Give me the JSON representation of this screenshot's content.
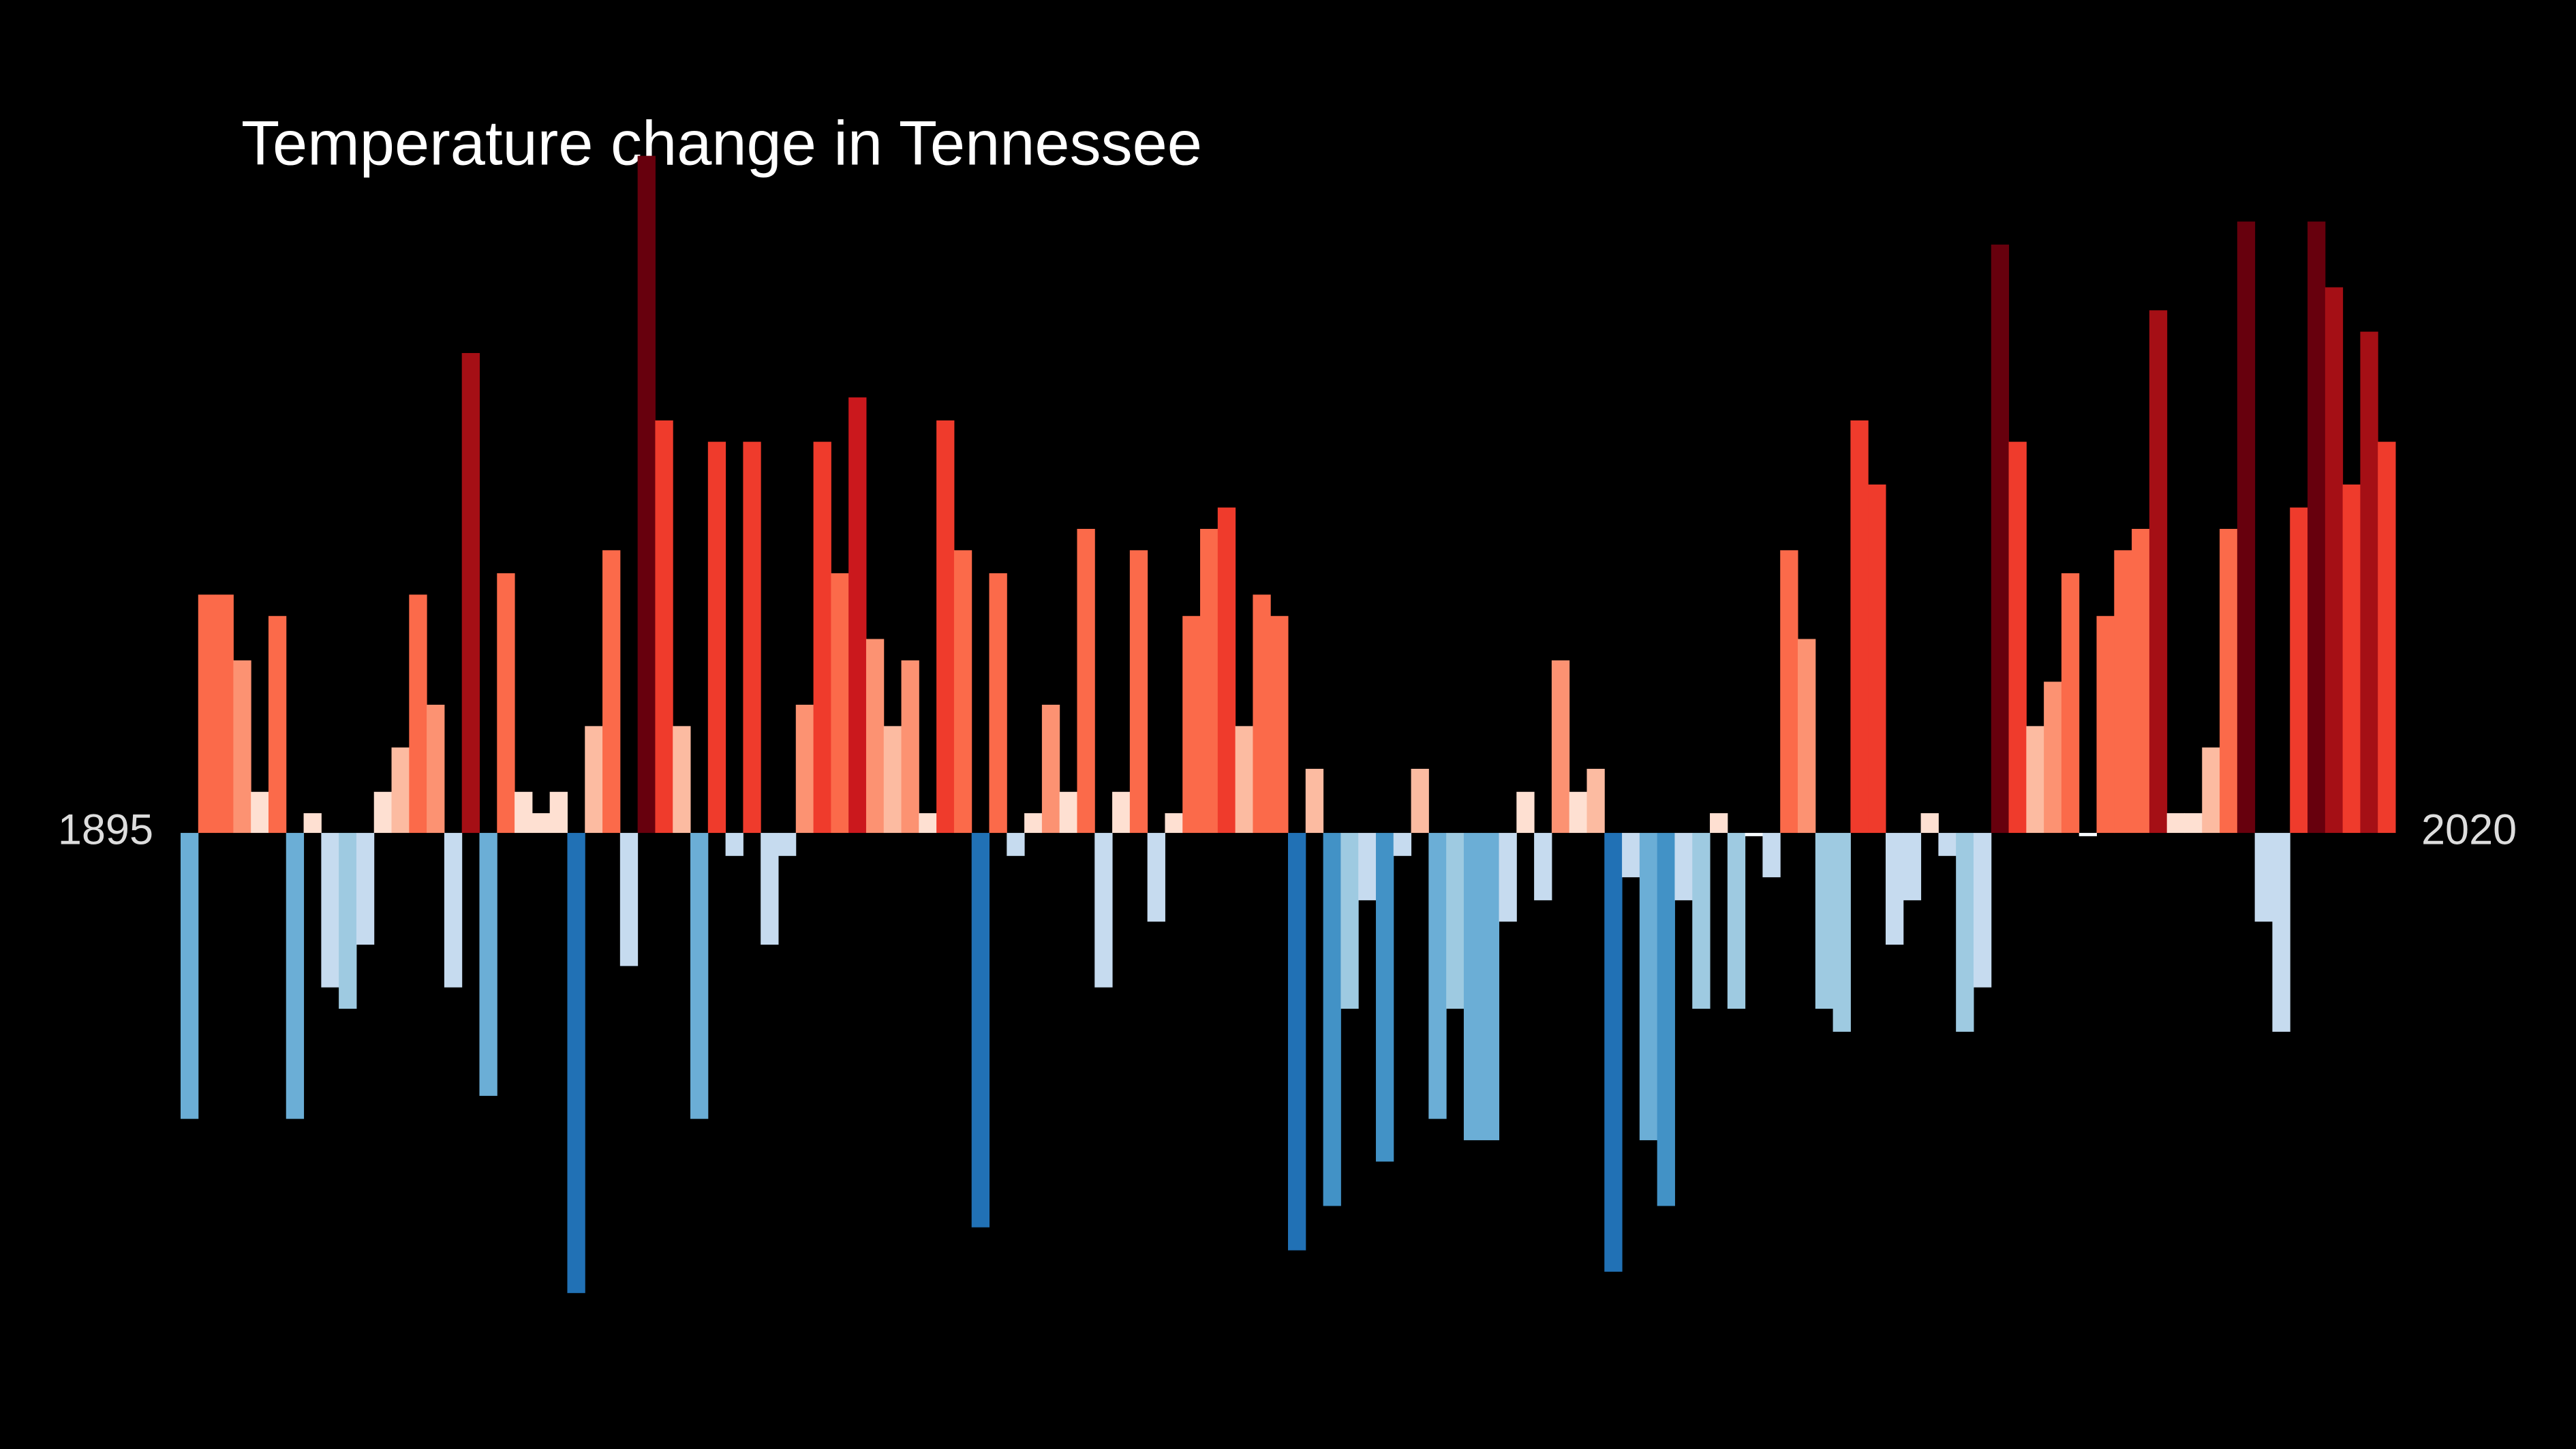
{
  "chart_data": {
    "type": "bar",
    "title": "Temperature change in Tennessee",
    "categories": [
      "1895",
      null,
      null,
      null,
      null,
      null,
      null,
      null,
      null,
      null,
      null,
      null,
      null,
      null,
      null,
      null,
      null,
      null,
      null,
      null,
      null,
      null,
      null,
      null,
      null,
      null,
      null,
      null,
      null,
      null,
      null,
      null,
      null,
      null,
      null,
      null,
      null,
      null,
      null,
      null,
      null,
      null,
      null,
      null,
      null,
      null,
      null,
      null,
      null,
      null,
      null,
      null,
      null,
      null,
      null,
      null,
      null,
      null,
      null,
      null,
      null,
      null,
      null,
      null,
      null,
      null,
      null,
      null,
      null,
      null,
      null,
      null,
      null,
      null,
      null,
      null,
      null,
      null,
      null,
      null,
      null,
      null,
      null,
      null,
      null,
      null,
      null,
      null,
      null,
      null,
      null,
      null,
      null,
      null,
      null,
      null,
      null,
      null,
      null,
      null,
      null,
      null,
      null,
      null,
      null,
      null,
      null,
      null,
      null,
      null,
      null,
      null,
      null,
      null,
      null,
      null,
      null,
      null,
      null,
      null,
      null,
      null,
      null,
      null,
      null,
      "2020"
    ],
    "values": [
      -1.74,
      1.45,
      1.45,
      1.05,
      0.25,
      1.32,
      -1.74,
      0.12,
      -0.94,
      -1.07,
      -0.68,
      0.25,
      0.52,
      1.45,
      0.78,
      -0.94,
      2.92,
      -1.6,
      1.58,
      0.25,
      0.12,
      0.25,
      -2.8,
      0.65,
      1.72,
      -0.81,
      4.12,
      2.51,
      0.65,
      -1.74,
      2.38,
      -0.14,
      2.38,
      -0.68,
      -0.14,
      0.78,
      2.38,
      1.58,
      2.65,
      1.18,
      0.65,
      1.05,
      0.12,
      2.51,
      1.72,
      -2.4,
      1.58,
      -0.14,
      0.12,
      0.78,
      0.25,
      1.85,
      -0.94,
      0.25,
      1.72,
      -0.54,
      0.12,
      1.32,
      1.85,
      1.98,
      0.65,
      1.45,
      1.32,
      -2.54,
      0.39,
      -2.27,
      -1.07,
      -0.41,
      -2.0,
      -0.14,
      0.39,
      -1.74,
      -1.07,
      -1.87,
      -1.87,
      -0.54,
      0.25,
      -0.41,
      1.05,
      0.25,
      0.39,
      -2.67,
      -0.27,
      -1.87,
      -2.27,
      -0.41,
      -1.07,
      0.12,
      -1.07,
      -0.02,
      -0.27,
      1.72,
      1.18,
      -1.07,
      -1.21,
      2.51,
      2.12,
      -0.68,
      -0.41,
      0.12,
      -0.14,
      -1.21,
      -0.94,
      3.58,
      2.38,
      0.65,
      0.92,
      1.58,
      -0.02,
      1.32,
      1.72,
      1.85,
      3.18,
      0.12,
      0.12,
      0.52,
      1.85,
      3.72,
      -0.54,
      -1.21,
      1.98,
      3.72,
      3.32,
      2.12,
      3.05,
      2.38
    ],
    "colors": [
      "#6baed6",
      "#fb6a4a",
      "#fb6a4a",
      "#fc9272",
      "#fee0d2",
      "#fb6a4a",
      "#6baed6",
      "#fee0d2",
      "#c6dbef",
      "#9ecae1",
      "#c6dbef",
      "#fee0d2",
      "#fcbba1",
      "#fb6a4a",
      "#fc9272",
      "#c6dbef",
      "#a50f15",
      "#6baed6",
      "#fb6a4a",
      "#fee0d2",
      "#fee0d2",
      "#fee0d2",
      "#2171b5",
      "#fcbba1",
      "#fb6a4a",
      "#c6dbef",
      "#67000d",
      "#ef3b2c",
      "#fcbba1",
      "#6baed6",
      "#ef3b2c",
      "#c6dbef",
      "#ef3b2c",
      "#c6dbef",
      "#c6dbef",
      "#fc9272",
      "#ef3b2c",
      "#fb6a4a",
      "#cb181d",
      "#fc9272",
      "#fcbba1",
      "#fc9272",
      "#fee0d2",
      "#ef3b2c",
      "#fb6a4a",
      "#2171b5",
      "#fb6a4a",
      "#c6dbef",
      "#fee0d2",
      "#fc9272",
      "#fee0d2",
      "#fb6a4a",
      "#c6dbef",
      "#fee0d2",
      "#fb6a4a",
      "#c6dbef",
      "#fee0d2",
      "#fb6a4a",
      "#fb6a4a",
      "#ef3b2c",
      "#fcbba1",
      "#fb6a4a",
      "#fb6a4a",
      "#2171b5",
      "#fcbba1",
      "#4292c6",
      "#9ecae1",
      "#c6dbef",
      "#4292c6",
      "#c6dbef",
      "#fcbba1",
      "#6baed6",
      "#9ecae1",
      "#6baed6",
      "#6baed6",
      "#c6dbef",
      "#fee0d2",
      "#c6dbef",
      "#fc9272",
      "#fee0d2",
      "#fcbba1",
      "#2171b5",
      "#c6dbef",
      "#6baed6",
      "#4292c6",
      "#c6dbef",
      "#9ecae1",
      "#fee0d2",
      "#9ecae1",
      "#f7fbff",
      "#c6dbef",
      "#fb6a4a",
      "#fc9272",
      "#9ecae1",
      "#9ecae1",
      "#ef3b2c",
      "#ef3b2c",
      "#c6dbef",
      "#c6dbef",
      "#fee0d2",
      "#c6dbef",
      "#9ecae1",
      "#c6dbef",
      "#67000d",
      "#ef3b2c",
      "#fcbba1",
      "#fc9272",
      "#fb6a4a",
      "#f7fbff",
      "#fb6a4a",
      "#fb6a4a",
      "#fb6a4a",
      "#a50f15",
      "#fee0d2",
      "#fee0d2",
      "#fcbba1",
      "#fb6a4a",
      "#67000d",
      "#c6dbef",
      "#c6dbef",
      "#ef3b2c",
      "#67000d",
      "#a50f15",
      "#ef3b2c",
      "#a50f15",
      "#ef3b2c"
    ],
    "ylim": [
      -3.5,
      4.5
    ]
  }
}
